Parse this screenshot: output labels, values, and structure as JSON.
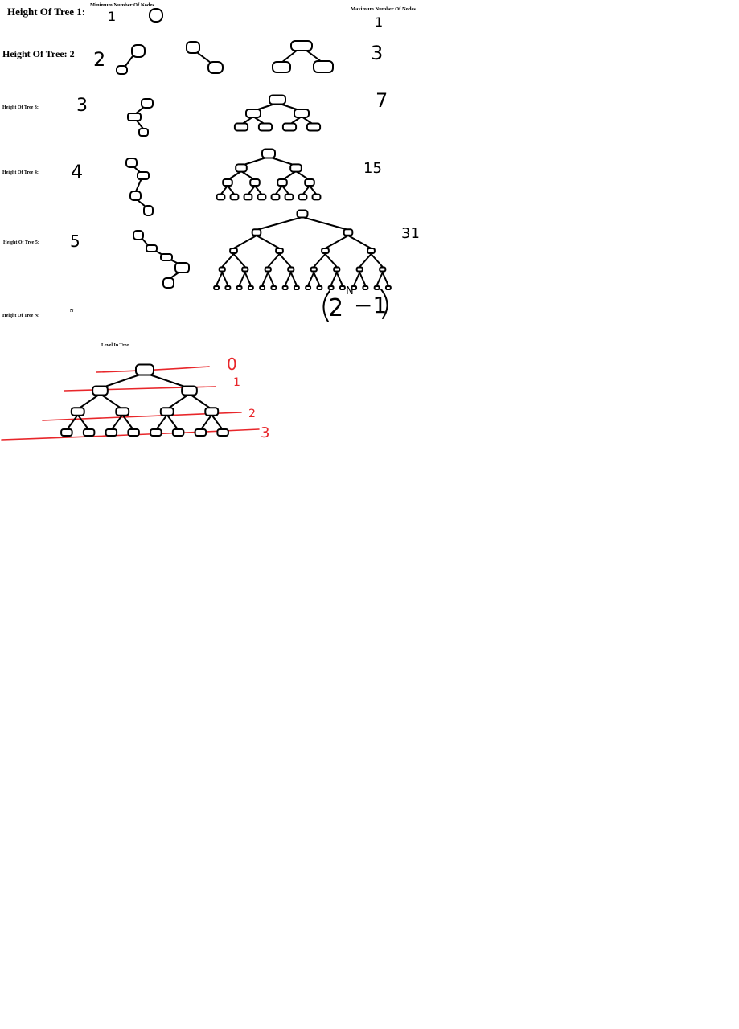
{
  "header": {
    "min_label": "Minimum Number Of Nodes",
    "max_label": "Maximum Number Of Nodes"
  },
  "rows": [
    {
      "label": "Height Of Tree 1:",
      "min": "1",
      "max": "1"
    },
    {
      "label": "Height Of Tree: 2",
      "min": "2",
      "max": "3"
    },
    {
      "label": "Height Of Tree 3:",
      "min": "3",
      "max": "7"
    },
    {
      "label": "Height Of Tree 4:",
      "min": "4",
      "max": "15"
    },
    {
      "label": "Height Of Tree 5:",
      "min": "5",
      "max": "31"
    },
    {
      "label": "Height Of Tree N:",
      "min": "N",
      "max_base": "2",
      "max_exp": "N",
      "max_rest": "−1"
    }
  ],
  "level_section": {
    "title": "Level In Tree",
    "levels": [
      "0",
      "1",
      "2",
      "3"
    ]
  },
  "colors": {
    "ink": "#000000",
    "level_lines": "#e8262a"
  }
}
